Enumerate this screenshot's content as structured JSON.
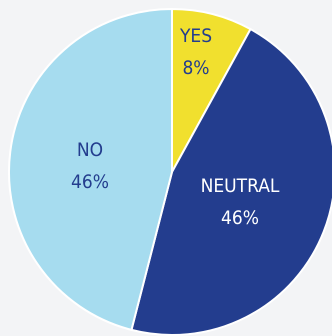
{
  "chart_data": {
    "type": "pie",
    "categories": [
      "YES",
      "NEUTRAL",
      "NO"
    ],
    "values": [
      8,
      46,
      46
    ],
    "percent_labels": [
      "8%",
      "46%",
      "46%"
    ],
    "colors": [
      "#f1e02e",
      "#233d8e",
      "#a6dcef"
    ],
    "label_colors": [
      "#233d8e",
      "#ffffff",
      "#233d8e"
    ],
    "legend": "none",
    "title": ""
  }
}
